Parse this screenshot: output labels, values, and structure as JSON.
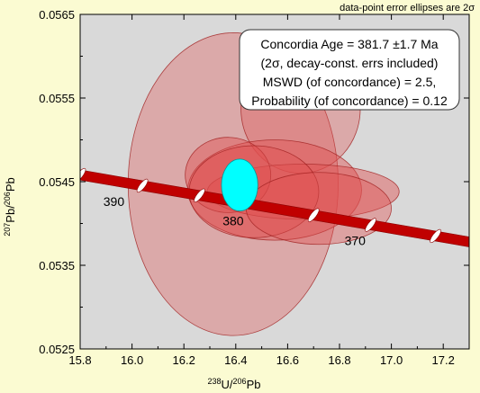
{
  "chart_data": {
    "type": "scatter",
    "note": "data-point error ellipses are 2σ",
    "xlabel": {
      "sup1": "238",
      "base1": "U/",
      "sup2": "206",
      "base2": "Pb"
    },
    "ylabel": {
      "sup1": "207",
      "base1": "Pb/",
      "sup2": "206",
      "base2": "Pb"
    },
    "xlim": [
      15.8,
      17.3
    ],
    "ylim": [
      0.0525,
      0.0565
    ],
    "xticks": [
      "15.8",
      "16.0",
      "16.2",
      "16.4",
      "16.6",
      "16.8",
      "17.0",
      "17.2"
    ],
    "yticks": [
      "0.0525",
      "0.0535",
      "0.0545",
      "0.0555",
      "0.0565"
    ],
    "grid": false,
    "result_box": {
      "lines": [
        "Concordia Age = 381.7 ±1.7 Ma",
        "(2σ, decay-const. errs included)",
        "MSWD (of concordance) = 2.5,",
        "Probability (of concordance) = 0.12"
      ]
    },
    "concordia": {
      "x_start": 15.8,
      "y_start": 0.05458,
      "x_end": 17.3,
      "y_end": 0.05378,
      "band_half_width": 6e-05,
      "color": "#c00000",
      "age_markers": [
        {
          "x": 15.8,
          "y": 0.05458
        },
        {
          "x": 16.04,
          "y": 0.054452
        },
        {
          "x": 16.26,
          "y": 0.054335
        },
        {
          "x": 16.7,
          "y": 0.0541
        },
        {
          "x": 16.92,
          "y": 0.053983
        },
        {
          "x": 17.17,
          "y": 0.05385
        }
      ],
      "age_labels": [
        {
          "text": "390",
          "x": 15.93,
          "y": 0.05421
        },
        {
          "text": "380",
          "x": 16.39,
          "y": 0.05398
        },
        {
          "text": "370",
          "x": 16.86,
          "y": 0.05374
        }
      ]
    },
    "ellipses": [
      {
        "cx": 16.39,
        "cy": 0.05447,
        "rx": 0.405,
        "ry": 0.00181,
        "rot": 0,
        "opacity": 0.35
      },
      {
        "cx": 16.65,
        "cy": 0.05537,
        "rx": 0.23,
        "ry": 0.00077,
        "rot": 0,
        "opacity": 0.35
      },
      {
        "cx": 16.55,
        "cy": 0.0544,
        "rx": 0.335,
        "ry": 0.0006,
        "rot": 0,
        "opacity": 0.45
      },
      {
        "cx": 16.66,
        "cy": 0.05438,
        "rx": 0.37,
        "ry": 0.00033,
        "rot": 0,
        "opacity": 0.45
      },
      {
        "cx": 16.37,
        "cy": 0.05458,
        "rx": 0.165,
        "ry": 0.00045,
        "rot": 0,
        "opacity": 0.45
      },
      {
        "cx": 16.47,
        "cy": 0.05438,
        "rx": 0.25,
        "ry": 0.00055,
        "rot": 0,
        "opacity": 0.4
      },
      {
        "cx": 16.72,
        "cy": 0.05418,
        "rx": 0.28,
        "ry": 0.00043,
        "rot": 0,
        "opacity": 0.4
      }
    ],
    "result_ellipse": {
      "cx": 16.415,
      "cy": 0.05446,
      "rx": 0.07,
      "ry": 0.00031,
      "color": "#00ffff"
    },
    "colors": {
      "background": "#fbfbd2",
      "plot_bg": "#d9d9d9",
      "ellipse_fill": "#e05050",
      "ellipse_stroke": "#a02020",
      "band": "#c00000",
      "box_fill": "#ffffff"
    }
  }
}
